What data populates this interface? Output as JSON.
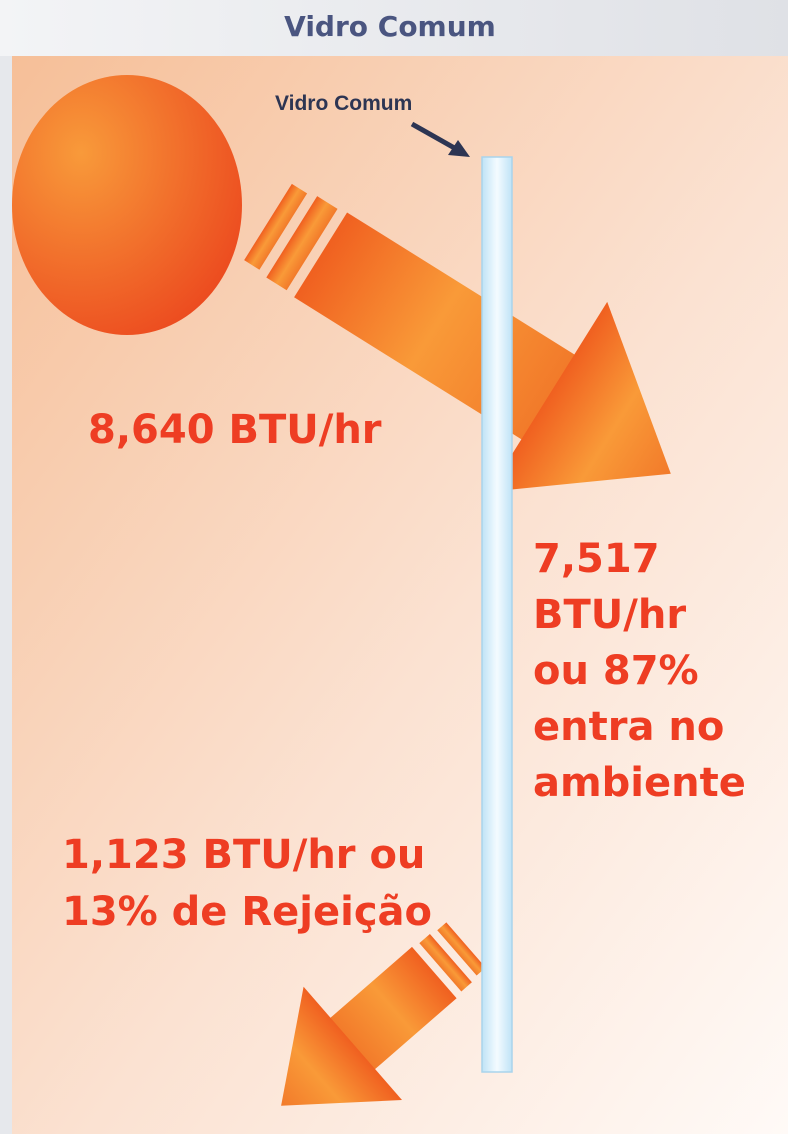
{
  "header": {
    "title": "Vidro Comum"
  },
  "glass": {
    "label": "Vidro Comum"
  },
  "incoming": {
    "label": "8,640 BTU/hr"
  },
  "transmitted": {
    "lines": [
      "7,517",
      "BTU/hr",
      "ou 87%",
      "entra no",
      "ambiente"
    ]
  },
  "rejected": {
    "lines": [
      "1,123 BTU/hr ou",
      "13% de Rejeição"
    ]
  }
}
